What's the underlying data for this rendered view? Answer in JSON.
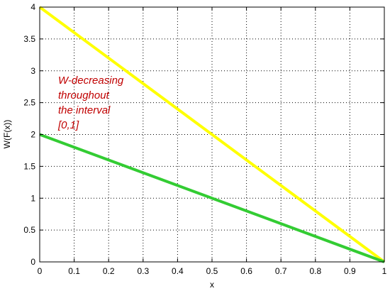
{
  "chart_data": {
    "type": "line",
    "title": "",
    "xlabel": "x",
    "ylabel": "W(F(x))",
    "xlim": [
      0,
      1
    ],
    "ylim": [
      0,
      4
    ],
    "xticks": [
      "0",
      "0.1",
      "0.2",
      "0.3",
      "0.4",
      "0.5",
      "0.6",
      "0.7",
      "0.8",
      "0.9",
      "1"
    ],
    "yticks": [
      "0",
      "0.5",
      "1",
      "1.5",
      "2",
      "2.5",
      "3",
      "3.5",
      "4"
    ],
    "grid": true,
    "series": [
      {
        "x": [
          0,
          1
        ],
        "y": [
          4,
          0
        ],
        "color": "#ffff00"
      },
      {
        "x": [
          0,
          1
        ],
        "y": [
          2,
          0
        ],
        "color": "#33cc33"
      }
    ],
    "annotation": {
      "lines": [
        "W-decreasing",
        "throughout",
        "the interval",
        "[0,1]"
      ],
      "color": "#c00000"
    }
  }
}
